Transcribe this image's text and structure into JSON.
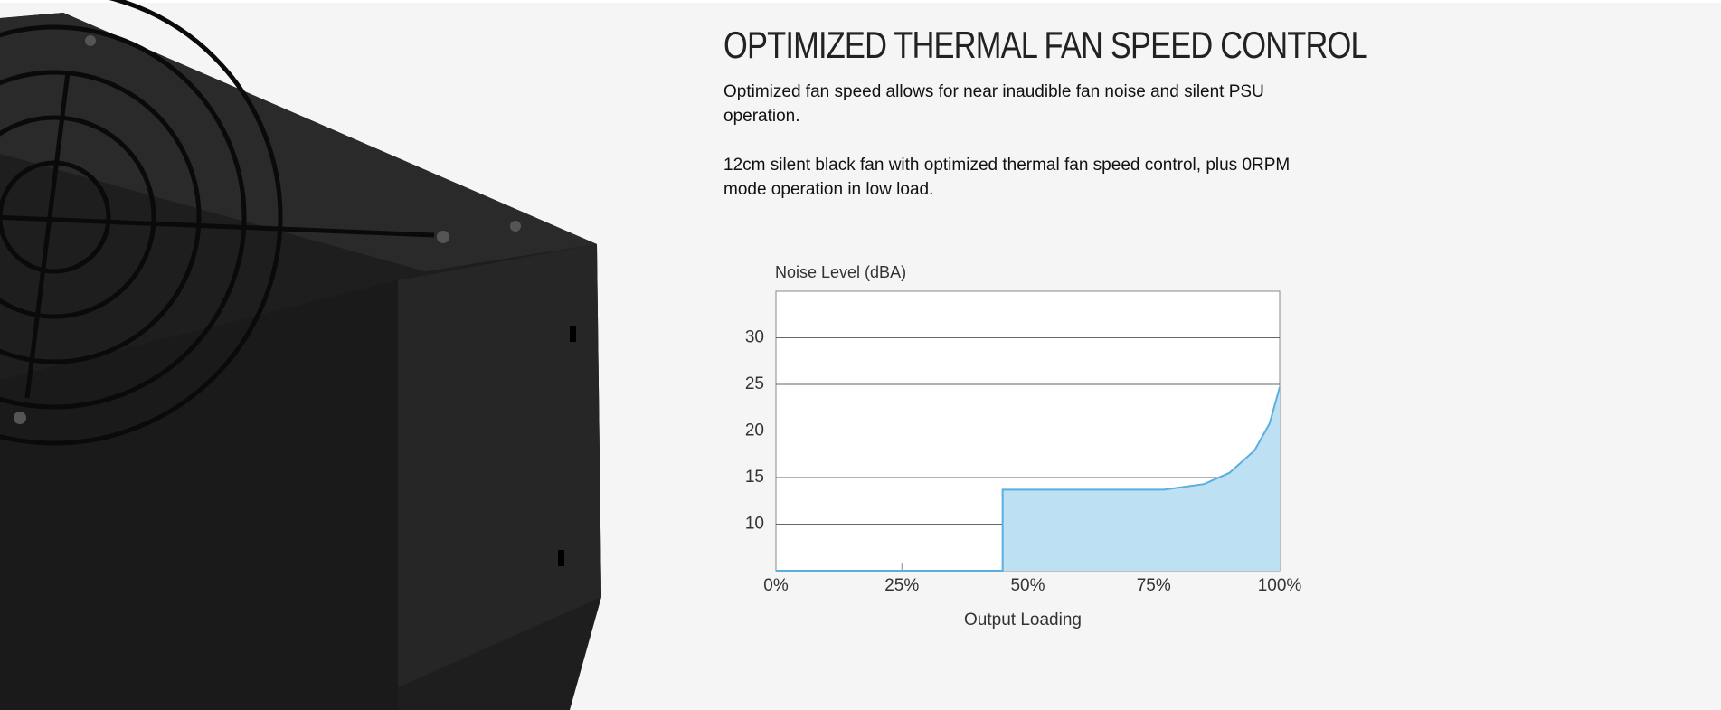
{
  "header": {
    "title": "OPTIMIZED THERMAL FAN SPEED CONTROL"
  },
  "paragraphs": [
    "Optimized fan speed allows for near inaudible fan noise and silent PSU operation.",
    "12cm silent black fan with optimized thermal fan speed control, plus 0RPM mode operation in low load."
  ],
  "chart_data": {
    "type": "area",
    "y_label": "Noise Level (dBA)",
    "x_label": "Output Loading",
    "x": [
      0,
      45,
      45,
      77,
      85,
      90,
      95,
      98,
      100
    ],
    "values": [
      5,
      5,
      13.7,
      13.7,
      14.3,
      15.5,
      17.9,
      20.8,
      24.7
    ],
    "color": "#5aaee0",
    "fill_color": "#bde0f2",
    "xlim": [
      0,
      100
    ],
    "xticks": [
      {
        "value": 0,
        "label": "0%"
      },
      {
        "value": 25,
        "label": "25%"
      },
      {
        "value": 50,
        "label": "50%"
      },
      {
        "value": 75,
        "label": "75%"
      },
      {
        "value": 100,
        "label": "100%"
      }
    ],
    "ylim": [
      5,
      35
    ],
    "yticks": [
      10,
      15,
      20,
      25,
      30
    ],
    "grid": true
  }
}
